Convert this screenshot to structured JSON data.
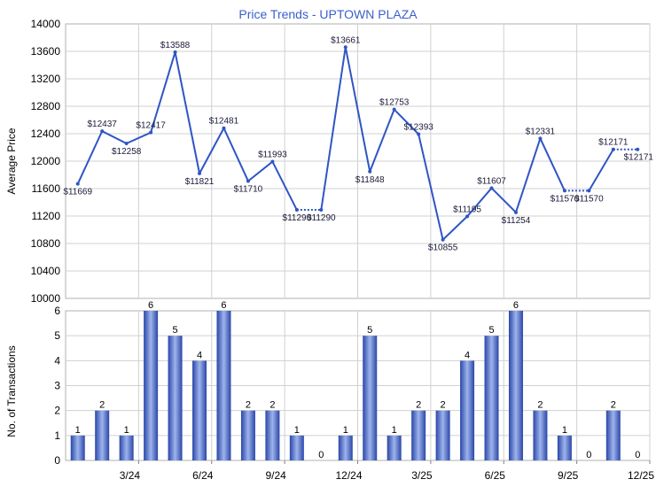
{
  "chart_data": [
    {
      "type": "line",
      "title": "Price Trends - UPTOWN PLAZA",
      "ylabel": "Average Price",
      "ylim": [
        10000,
        14000
      ],
      "yticks": [
        "14000",
        "13600",
        "13200",
        "12800",
        "12400",
        "12000",
        "11600",
        "11200",
        "10800",
        "10400",
        "10000"
      ],
      "grid": true,
      "series": [
        {
          "values": [
            11669,
            12437,
            12258,
            12417,
            13588,
            11821,
            12481,
            11710,
            11993,
            11290,
            11290,
            13661,
            11848,
            12753,
            12393,
            10855,
            11195,
            11607,
            11254,
            12331,
            11570,
            11570,
            12171,
            12171
          ],
          "labels": [
            "$11669",
            "$12437",
            "$12258",
            "$12417",
            "$13588",
            "$11821",
            "$12481",
            "$11710",
            "$11993",
            "$11290",
            "$11290",
            "$13661",
            "$11848",
            "$12753",
            "$12393",
            "$10855",
            "$11195",
            "$11607",
            "$11254",
            "$12331",
            "$11570",
            "$11570",
            "$12171",
            "$12171"
          ]
        }
      ],
      "carried_forward_segments": [
        [
          9,
          10
        ],
        [
          20,
          21
        ],
        [
          22,
          23
        ]
      ],
      "line_color": "#2f55c4"
    },
    {
      "type": "bar",
      "ylabel": "No. of Transactions",
      "ylim": [
        0,
        6
      ],
      "yticks": [
        "6",
        "5",
        "4",
        "3",
        "2",
        "1",
        "0"
      ],
      "grid": true,
      "values": [
        1,
        2,
        1,
        6,
        5,
        4,
        6,
        2,
        2,
        1,
        0,
        1,
        5,
        1,
        2,
        2,
        4,
        5,
        6,
        2,
        1,
        0,
        2,
        0
      ],
      "xtick_labels": [
        "3/24",
        "6/24",
        "9/24",
        "12/24",
        "3/25",
        "6/25",
        "9/25",
        "12/25"
      ],
      "bar_colors": {
        "dark": "#2a46a8",
        "light": "#9eb4ec"
      }
    }
  ]
}
